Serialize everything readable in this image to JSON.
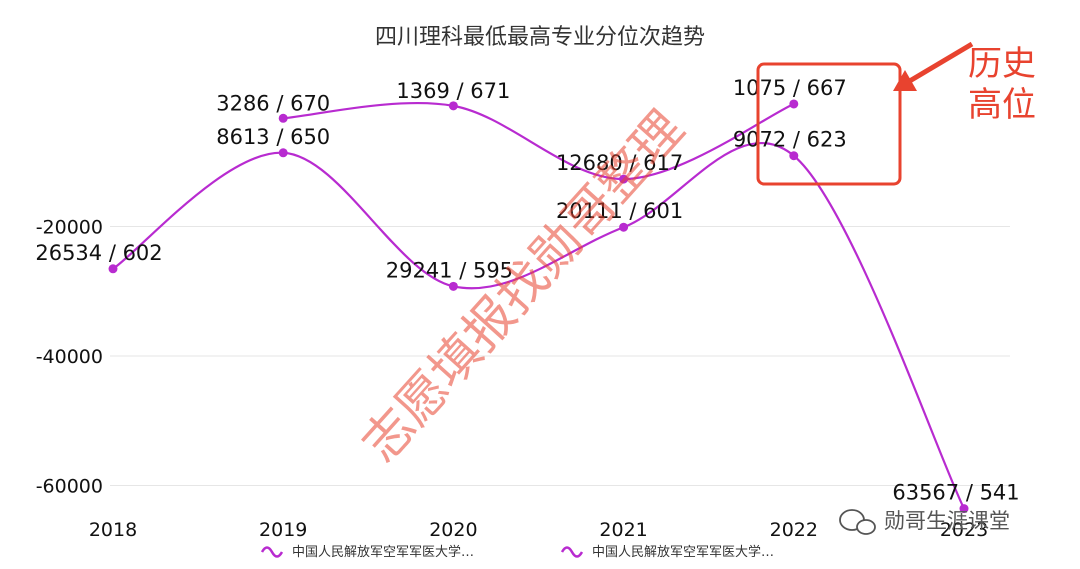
{
  "chart_data": {
    "type": "line",
    "title": "四川理科最低最高专业分位次趋势",
    "categories": [
      "2018",
      "2019",
      "2020",
      "2021",
      "2022",
      "2023"
    ],
    "x_tick_labels": [
      "2018",
      "2019",
      "2020",
      "2021",
      "2022",
      "2023"
    ],
    "y_ticks": [
      -20000,
      -40000,
      -60000
    ],
    "y_tick_labels": [
      "-20000",
      "-40000",
      "-60000"
    ],
    "ylim": [
      -66000,
      0
    ],
    "grid": true,
    "series": [
      {
        "name": "中国人民解放军空军军医大学…",
        "color": "#b82bd0",
        "values": [
          null,
          -3286,
          -1369,
          -12680,
          -1075,
          null
        ],
        "labels": [
          "",
          "3286 / 670",
          "1369 / 671",
          "12680 / 617",
          "1075 / 667",
          ""
        ]
      },
      {
        "name": "中国人民解放军空军军医大学…",
        "color": "#b82bd0",
        "values": [
          -26534,
          -8613,
          -29241,
          -20111,
          -9072,
          -63567
        ],
        "labels": [
          "26534 / 602",
          "8613 / 650",
          "29241 / 595",
          "20111 / 601",
          "9072 / 623",
          "63567 / 541"
        ]
      }
    ],
    "legend": [
      "中国人民解放军空军军医大学…",
      "中国人民解放军空军军医大学…"
    ],
    "legend_position": "bottom",
    "annotation": {
      "text_line1": "历史",
      "text_line2": "高位",
      "color": "#e8432f"
    },
    "watermark": "志愿填报找勋哥整理",
    "logo_text": "勋哥生涯课堂"
  }
}
